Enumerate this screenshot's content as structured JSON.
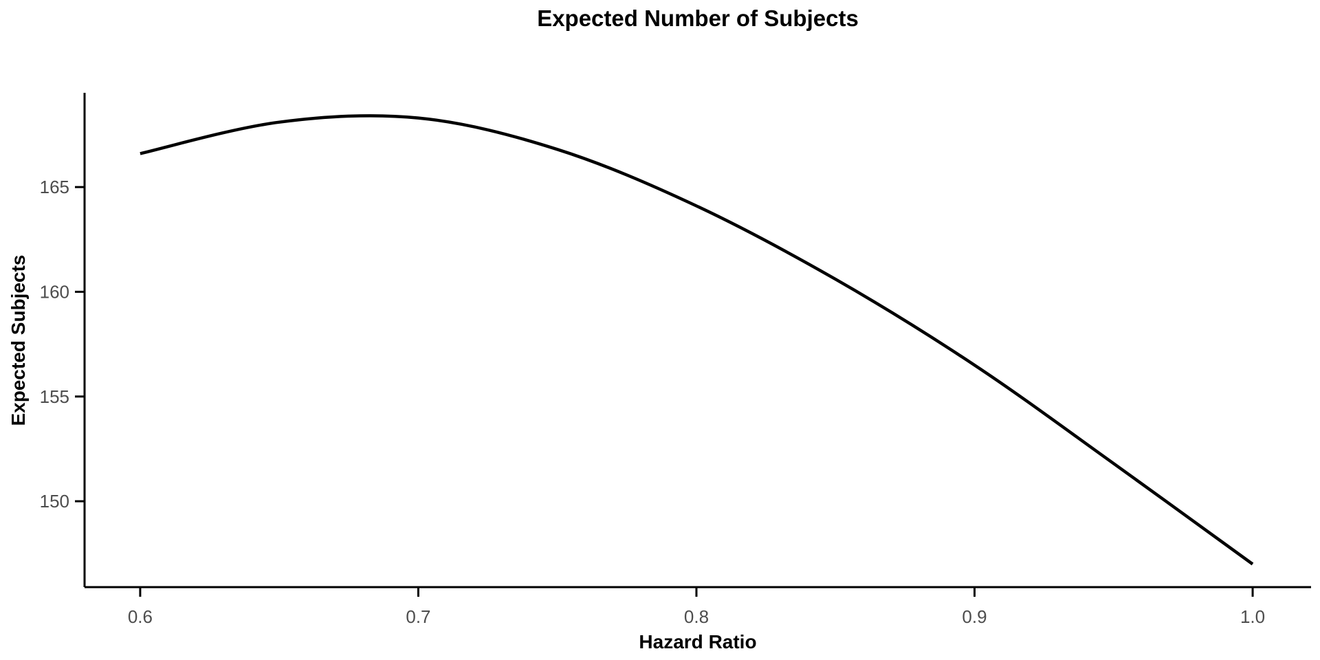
{
  "title": "Expected Number of Subjects",
  "chart_data": {
    "type": "line",
    "title": "Expected Number of Subjects",
    "xlabel": "Hazard Ratio",
    "ylabel": "Expected Subjects",
    "x": [
      0.6,
      0.65,
      0.7,
      0.75,
      0.8,
      0.85,
      0.9,
      0.95,
      1.0
    ],
    "series": [
      {
        "name": "Expected Subjects",
        "values": [
          166.6,
          168.1,
          168.3,
          166.8,
          164.1,
          160.6,
          156.5,
          151.8,
          147.0
        ]
      }
    ],
    "peak": {
      "x": 0.69,
      "y": 168.35
    },
    "xlim": [
      0.58,
      1.021
    ],
    "ylim": [
      145.9,
      169.5
    ],
    "x_ticks": [
      0.6,
      0.7,
      0.8,
      0.9,
      1.0
    ],
    "x_tick_labels": [
      "0.6",
      "0.7",
      "0.8",
      "0.9",
      "1.0"
    ],
    "y_ticks": [
      150,
      155,
      160,
      165
    ],
    "y_tick_labels": [
      "150",
      "155",
      "160",
      "165"
    ],
    "grid": false,
    "legend_position": "none",
    "line_color": "#000000",
    "axis_color": "#000000",
    "tick_label_color": "#4D4D4D",
    "background_color": "#FFFFFF"
  }
}
